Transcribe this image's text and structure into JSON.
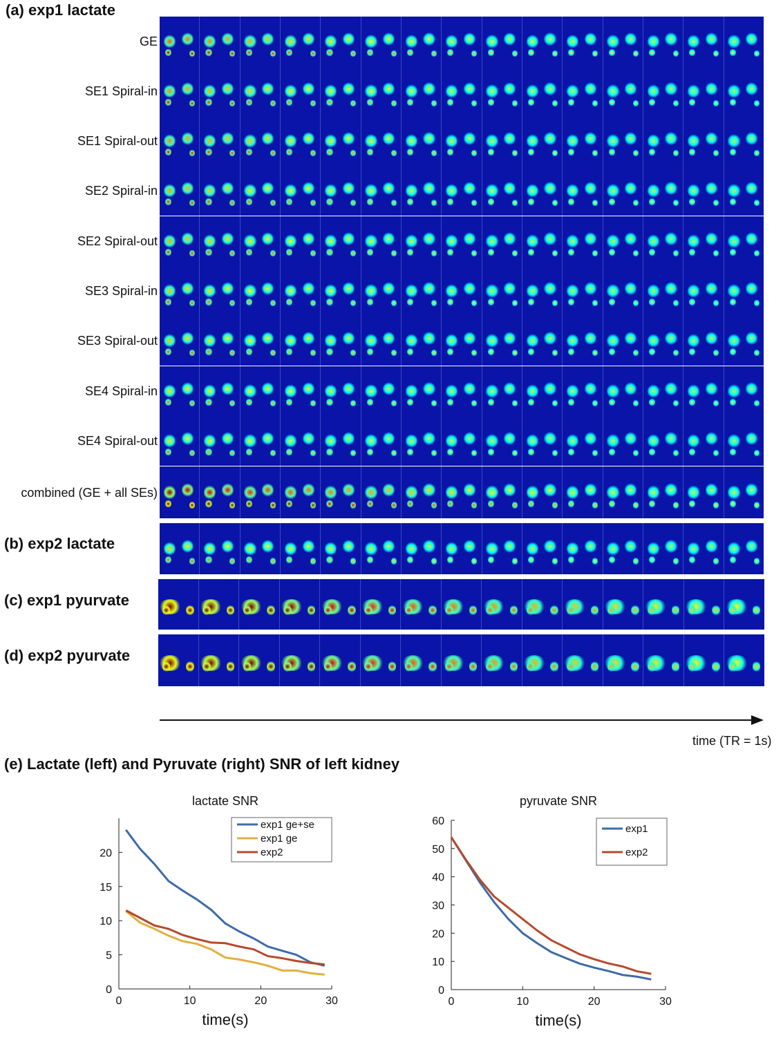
{
  "panel_a": {
    "title": "(a) exp1 lactate",
    "rows": [
      {
        "label": "GE",
        "intensity": 0.55,
        "combined": false
      },
      {
        "label": "SE1 Spiral-in",
        "intensity": 0.45,
        "combined": false
      },
      {
        "label": "SE1 Spiral-out",
        "intensity": 0.45,
        "combined": false
      },
      {
        "label": "SE2 Spiral-in",
        "intensity": 0.4,
        "combined": false
      },
      {
        "label": "SE2 Spiral-out",
        "intensity": 0.38,
        "combined": false
      },
      {
        "label": "SE3 Spiral-in",
        "intensity": 0.33,
        "combined": false
      },
      {
        "label": "SE3 Spiral-out",
        "intensity": 0.32,
        "combined": false
      },
      {
        "label": "SE4 Spiral-in",
        "intensity": 0.28,
        "combined": false
      },
      {
        "label": "SE4 Spiral-out",
        "intensity": 0.27,
        "combined": false
      },
      {
        "label": "combined (GE + all SEs)",
        "intensity": 1.0,
        "combined": true
      }
    ]
  },
  "panel_b": {
    "title": "(b) exp2 lactate",
    "intensity": 0.5
  },
  "panel_c": {
    "title": "(c) exp1 pyurvate",
    "intensity": 1.0
  },
  "panel_d": {
    "title": "(d) exp2 pyurvate",
    "intensity": 1.0
  },
  "frames_per_row": 15,
  "time_axis_label": "time (TR = 1s)",
  "panel_e": {
    "title": "(e) Lactate (left) and Pyruvate (right) SNR of left kidney"
  },
  "colors": {
    "strip_bg": "#0a14a8",
    "blue": "#3e6aa8",
    "yellow": "#e0b03c",
    "red": "#b44a2c"
  },
  "chart_data": [
    {
      "type": "line",
      "title": "lactate SNR",
      "xlabel": "time(s)",
      "ylabel": "",
      "xlim": [
        0,
        30
      ],
      "ylim": [
        0,
        25
      ],
      "xticks": [
        0,
        10,
        20,
        30
      ],
      "yticks": [
        0,
        5,
        10,
        15,
        20
      ],
      "legend_position": "top-right",
      "series": [
        {
          "name": "exp1 ge+se",
          "color": "#3e6aa8",
          "x": [
            1,
            3,
            5,
            7,
            9,
            11,
            13,
            15,
            17,
            19,
            21,
            23,
            25,
            27,
            29
          ],
          "y": [
            23.3,
            20.5,
            18.3,
            15.8,
            14.4,
            13.1,
            11.6,
            9.6,
            8.4,
            7.4,
            6.2,
            5.6,
            5.0,
            3.9,
            3.4
          ]
        },
        {
          "name": "exp1 ge",
          "color": "#e0b03c",
          "x": [
            1,
            3,
            5,
            7,
            9,
            11,
            13,
            15,
            17,
            19,
            21,
            23,
            25,
            27,
            29
          ],
          "y": [
            11.4,
            9.7,
            8.8,
            7.8,
            7.0,
            6.6,
            5.8,
            4.6,
            4.3,
            3.9,
            3.4,
            2.7,
            2.7,
            2.3,
            2.1
          ]
        },
        {
          "name": "exp2",
          "color": "#b44a2c",
          "x": [
            1,
            3,
            5,
            7,
            9,
            11,
            13,
            15,
            17,
            19,
            21,
            23,
            25,
            27,
            29
          ],
          "y": [
            11.5,
            10.4,
            9.3,
            8.8,
            7.9,
            7.3,
            6.8,
            6.7,
            6.2,
            5.8,
            4.8,
            4.5,
            4.1,
            3.8,
            3.6
          ]
        }
      ]
    },
    {
      "type": "line",
      "title": "pyruvate SNR",
      "xlabel": "time(s)",
      "ylabel": "",
      "xlim": [
        0,
        30
      ],
      "ylim": [
        0,
        60
      ],
      "xticks": [
        0,
        10,
        20,
        30
      ],
      "yticks": [
        0,
        10,
        20,
        30,
        40,
        50,
        60
      ],
      "legend_position": "top-right",
      "series": [
        {
          "name": "exp1",
          "color": "#3e6aa8",
          "x": [
            0,
            2,
            4,
            6,
            8,
            10,
            12,
            14,
            16,
            18,
            20,
            22,
            24,
            26,
            28
          ],
          "y": [
            54,
            46,
            38,
            31,
            25,
            20,
            16.5,
            13.3,
            11.2,
            9.2,
            7.8,
            6.6,
            5.2,
            4.6,
            3.6
          ]
        },
        {
          "name": "exp2",
          "color": "#b44a2c",
          "x": [
            0,
            2,
            4,
            6,
            8,
            10,
            12,
            14,
            16,
            18,
            20,
            22,
            24,
            26,
            28
          ],
          "y": [
            54,
            46.2,
            39,
            33,
            29,
            25,
            21,
            17.5,
            15,
            12.5,
            10.8,
            9.3,
            8.2,
            6.5,
            5.6
          ]
        }
      ]
    }
  ]
}
